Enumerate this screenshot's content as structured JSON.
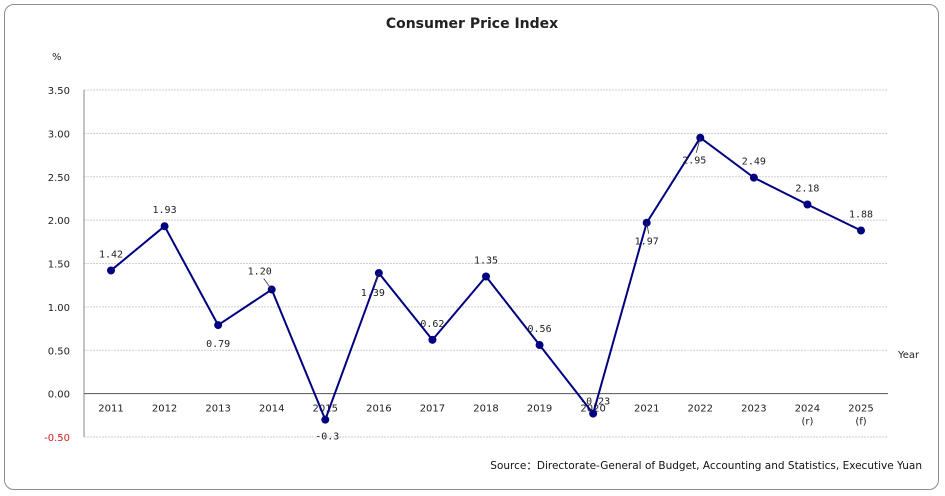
{
  "chart_data": {
    "type": "line",
    "title": "Consumer Price Index",
    "ylabel": "%",
    "xlabel": "Year",
    "source": "Source：Directorate-General of Budget, Accounting and Statistics, Executive Yuan",
    "categories": [
      "2011",
      "2012",
      "2013",
      "2014",
      "2015",
      "2016",
      "2017",
      "2018",
      "2019",
      "2020",
      "2021",
      "2022",
      "2023",
      "2024",
      "2025"
    ],
    "category_notes": [
      "",
      "",
      "",
      "",
      "",
      "",
      "",
      "",
      "",
      "",
      "",
      "",
      "",
      "(r)",
      "(f)"
    ],
    "series": [
      {
        "values": [
          1.42,
          1.93,
          0.79,
          1.2,
          -0.3,
          1.39,
          0.62,
          1.35,
          0.56,
          -0.23,
          1.97,
          2.95,
          2.49,
          2.18,
          1.88
        ],
        "labels": [
          "1.42",
          "1.93",
          "0.79",
          "1.20",
          "-0.3",
          "1.39",
          "0.62",
          "1.35",
          "0.56",
          "-0.23",
          "1.97",
          "2.95",
          "2.49",
          "2.18",
          "1.88"
        ],
        "color": "#000080"
      }
    ],
    "yticks": [
      "3.50",
      "3.00",
      "2.50",
      "2.00",
      "1.50",
      "1.00",
      "0.50",
      "0.00",
      "-0.50"
    ],
    "ylim": [
      -0.5,
      3.5
    ],
    "grid": true,
    "negative_tick_color": "#d02020"
  }
}
